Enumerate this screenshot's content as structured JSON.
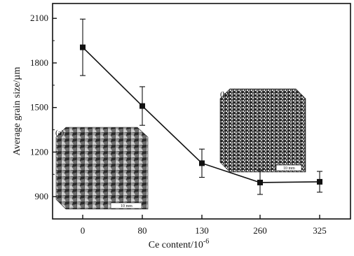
{
  "chart_data": {
    "type": "line",
    "xlabel": "Ce content/10",
    "xlabel_superscript": "-6",
    "ylabel": "Average grain size/µm",
    "categories": [
      "0",
      "80",
      "130",
      "260",
      "325"
    ],
    "yticks": [
      "900",
      "1200",
      "1500",
      "1800",
      "2100"
    ],
    "ylim": [
      750,
      2200
    ],
    "grid": false,
    "series": [
      {
        "values": [
          1905,
          1510,
          1125,
          995,
          1000
        ],
        "error": [
          190,
          130,
          95,
          80,
          70
        ],
        "marker": "square",
        "color": "#111111"
      }
    ],
    "insets": [
      {
        "label": "(a)",
        "scale_bar": "10 mm"
      },
      {
        "label": "(b)",
        "scale_bar": "10 mm"
      }
    ]
  }
}
